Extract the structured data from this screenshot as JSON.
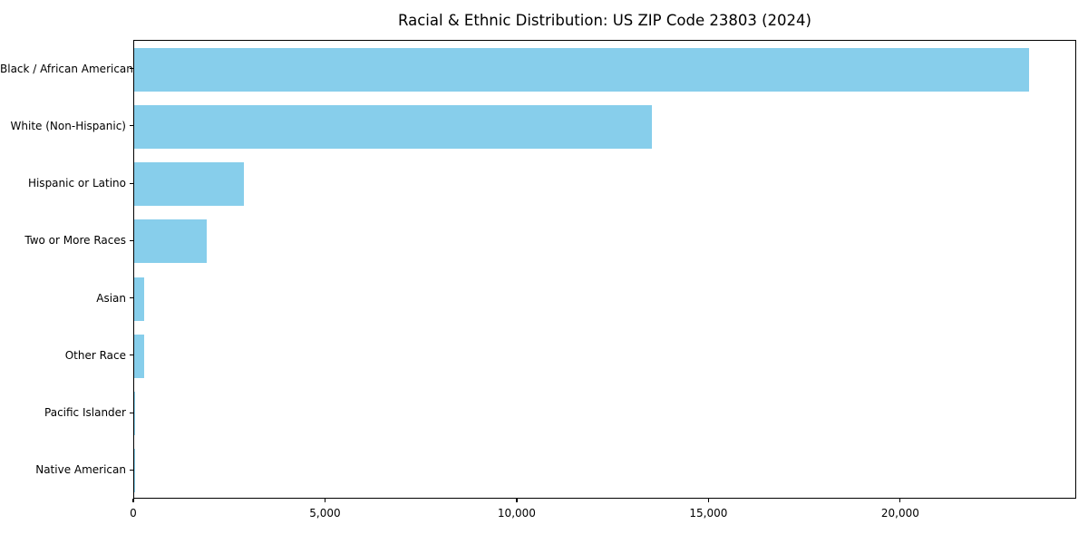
{
  "title": "Racial & Ethnic Distribution: US ZIP Code 23803 (2024)",
  "chart_data": {
    "type": "bar",
    "orientation": "horizontal",
    "title": "Racial & Ethnic Distribution: US ZIP Code 23803 (2024)",
    "categories": [
      "Black / African American",
      "White (Non-Hispanic)",
      "Hispanic or Latino",
      "Two or More Races",
      "Asian",
      "Other Race",
      "Pacific Islander",
      "Native American"
    ],
    "values": [
      23380,
      13520,
      2860,
      1890,
      260,
      250,
      25,
      10
    ],
    "xlabel": "",
    "ylabel": "",
    "xlim": [
      0,
      24590
    ],
    "xticks": [
      0,
      5000,
      10000,
      15000,
      20000
    ],
    "xtick_labels": [
      "0",
      "5,000",
      "10,000",
      "15,000",
      "20,000"
    ],
    "bar_color": "#87CEEB",
    "axis_color": "#000000",
    "background": "#ffffff",
    "grid": false,
    "legend": null
  }
}
